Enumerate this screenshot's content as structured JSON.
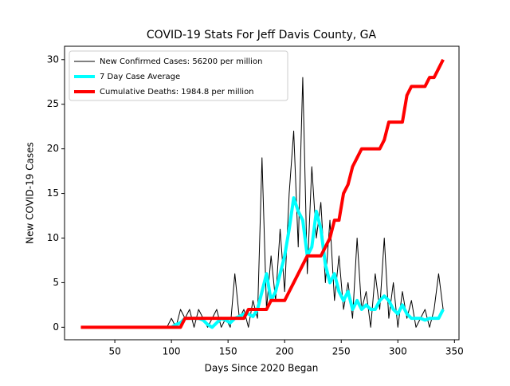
{
  "chart_data": {
    "type": "line",
    "title": "COVID-19 Stats For Jeff Davis County, GA",
    "x_label": "Days Since 2020 Began",
    "y_label": "New COVID-19 Cases",
    "x": [
      20,
      24,
      28,
      32,
      36,
      40,
      44,
      48,
      52,
      56,
      60,
      64,
      68,
      72,
      76,
      80,
      84,
      88,
      92,
      96,
      100,
      104,
      108,
      112,
      116,
      120,
      124,
      128,
      132,
      136,
      140,
      144,
      148,
      152,
      156,
      160,
      164,
      168,
      172,
      176,
      180,
      184,
      188,
      192,
      196,
      200,
      204,
      208,
      212,
      216,
      220,
      224,
      228,
      232,
      236,
      240,
      244,
      248,
      252,
      256,
      260,
      264,
      268,
      272,
      276,
      280,
      284,
      288,
      292,
      296,
      300,
      304,
      308,
      312,
      316,
      320,
      324,
      328,
      332,
      336,
      340
    ],
    "series": [
      {
        "name": "New Confirmed Cases: 56200 per million",
        "color": "#000000",
        "width": 1,
        "values": [
          0,
          0,
          0,
          0,
          0,
          0,
          0,
          0,
          0,
          0,
          0,
          0,
          0,
          0,
          0,
          0,
          0,
          0,
          0,
          0,
          1,
          0,
          2,
          1,
          2,
          0,
          2,
          1,
          0,
          1,
          2,
          0,
          1,
          0,
          6,
          1,
          2,
          0,
          3,
          1,
          19,
          2,
          8,
          3,
          11,
          4,
          15,
          22,
          9,
          28,
          6,
          18,
          10,
          14,
          5,
          12,
          3,
          8,
          2,
          5,
          1,
          10,
          2,
          4,
          0,
          6,
          2,
          10,
          1,
          5,
          0,
          4,
          1,
          3,
          0,
          1,
          2,
          0,
          2,
          6,
          2
        ]
      },
      {
        "name": "7 Day Case Average",
        "color": "#00ffff",
        "width": 4,
        "values": [
          null,
          null,
          null,
          null,
          null,
          null,
          null,
          null,
          null,
          null,
          null,
          null,
          null,
          null,
          null,
          null,
          null,
          null,
          null,
          null,
          0,
          0.3,
          0.5,
          1,
          1,
          1,
          1,
          0.8,
          0.3,
          0,
          0.5,
          1,
          0.8,
          0.5,
          1,
          1.2,
          1.5,
          1.5,
          1.2,
          2,
          4,
          6,
          3,
          4,
          6,
          8,
          11,
          14.5,
          13,
          12,
          8,
          9,
          13,
          11,
          7,
          5,
          6,
          4,
          3,
          4,
          2,
          3,
          2,
          2.5,
          2,
          2,
          3,
          3.5,
          3,
          2,
          1.5,
          2.5,
          1.5,
          1,
          1,
          1,
          0.8,
          1,
          1,
          1,
          2
        ]
      },
      {
        "name": "Cumulative Deaths: 1984.8 per million",
        "color": "#ff0000",
        "width": 4,
        "values": [
          0,
          0,
          0,
          0,
          0,
          0,
          0,
          0,
          0,
          0,
          0,
          0,
          0,
          0,
          0,
          0,
          0,
          0,
          0,
          0,
          0,
          0,
          0,
          1,
          1,
          1,
          1,
          1,
          1,
          1,
          1,
          1,
          1,
          1,
          1,
          1,
          1,
          2,
          2,
          2,
          2,
          2,
          3,
          3,
          3,
          3,
          4,
          5,
          6,
          7,
          8,
          8,
          8,
          8,
          9,
          10,
          12,
          12,
          15,
          16,
          18,
          19,
          20,
          20,
          20,
          20,
          20,
          21,
          23,
          23,
          23,
          23,
          26,
          27,
          27,
          27,
          27,
          28,
          28,
          29,
          30
        ]
      }
    ],
    "xlim": [
      5.6,
      354
    ],
    "ylim": [
      -1.4,
      31.5
    ],
    "xticks": [
      50,
      100,
      150,
      200,
      250,
      300,
      350
    ],
    "yticks": [
      0,
      5,
      10,
      15,
      20,
      25,
      30
    ],
    "legend": "upper left"
  }
}
